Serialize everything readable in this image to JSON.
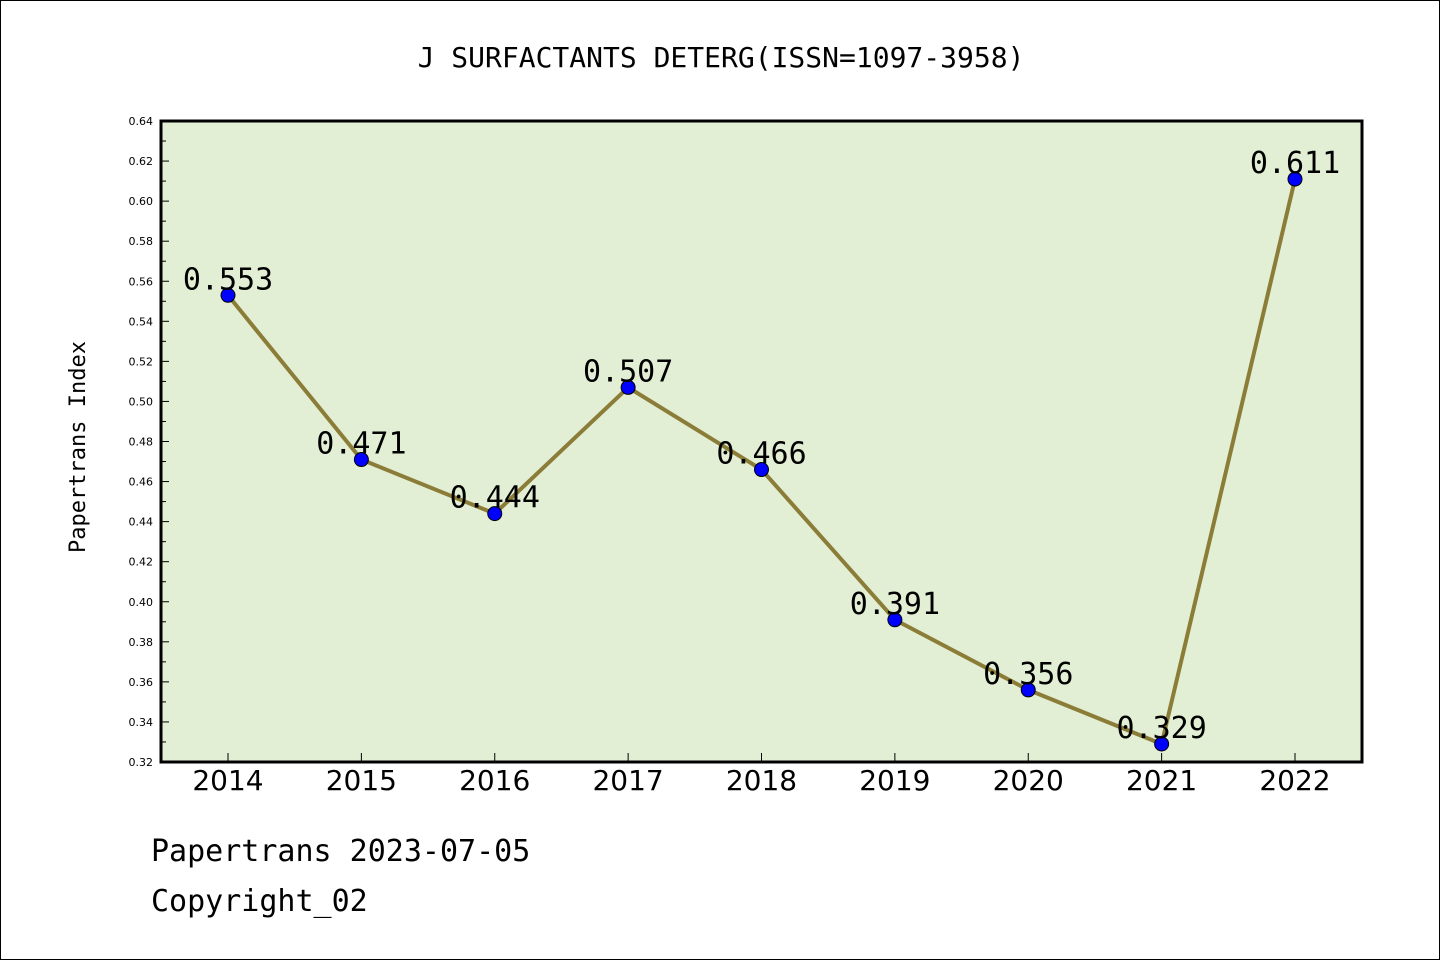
{
  "chart_data": {
    "type": "line",
    "title": "J SURFACTANTS DETERG(ISSN=1097-3958)",
    "xlabel": "",
    "ylabel": "Papertrans Index",
    "categories": [
      "2014",
      "2015",
      "2016",
      "2017",
      "2018",
      "2019",
      "2020",
      "2021",
      "2022"
    ],
    "series": [
      {
        "values": [
          0.553,
          0.471,
          0.444,
          0.507,
          0.466,
          0.391,
          0.356,
          0.329,
          0.611
        ],
        "labels": [
          "0.553",
          "0.471",
          "0.444",
          "0.507",
          "0.466",
          "0.391",
          "0.356",
          "0.329",
          "0.611"
        ]
      }
    ],
    "ylim": [
      0.32,
      0.64
    ],
    "yticks": [
      "0.32",
      "0.34",
      "0.36",
      "0.38",
      "0.40",
      "0.42",
      "0.44",
      "0.46",
      "0.48",
      "0.50",
      "0.52",
      "0.54",
      "0.56",
      "0.58",
      "0.60",
      "0.62",
      "0.64"
    ],
    "grid": false,
    "colors": {
      "plot_background": "#e2efd5",
      "line": "#8b7d37",
      "marker": "#0000ff"
    }
  },
  "footer": {
    "date_line": "Papertrans 2023-07-05",
    "copyright": "Copyright_02"
  }
}
